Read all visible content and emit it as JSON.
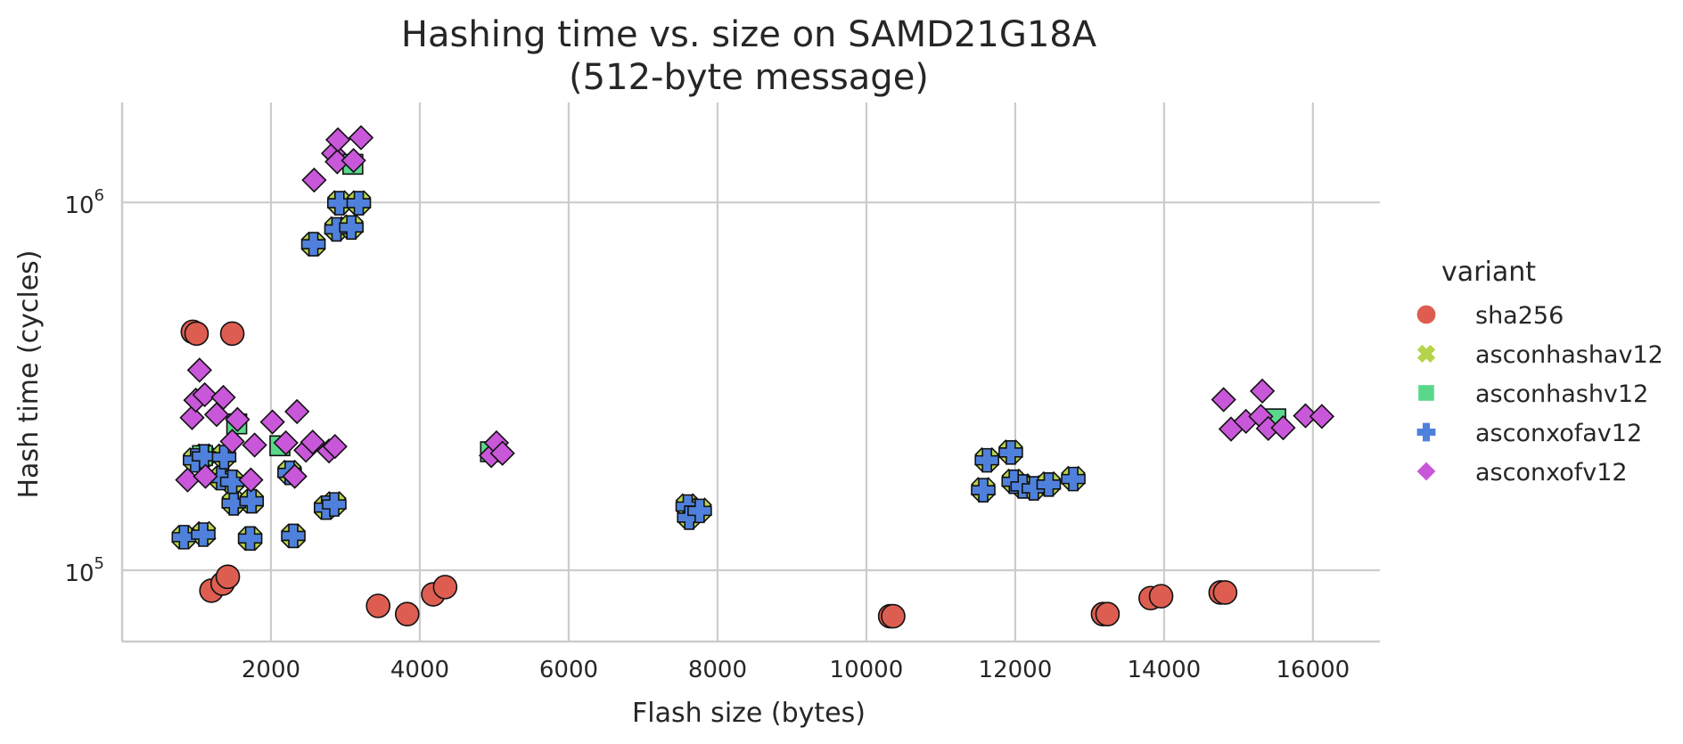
{
  "chart_data": {
    "type": "scatter",
    "title": "Hashing time vs. size on SAMD21G18A",
    "subtitle": "(512-byte message)",
    "xlabel": "Flash size (bytes)",
    "ylabel": "Hash time (cycles)",
    "x_scale": "linear",
    "y_scale": "log",
    "xlim": [
      0,
      16900
    ],
    "ylim": [
      64000,
      1870000
    ],
    "x_ticks": [
      2000,
      4000,
      6000,
      8000,
      10000,
      12000,
      14000,
      16000
    ],
    "x_tick_labels": [
      "2000",
      "4000",
      "6000",
      "8000",
      "10000",
      "12000",
      "14000",
      "16000"
    ],
    "y_ticks": [
      {
        "value": 100000,
        "base": "10",
        "exp": "5"
      },
      {
        "value": 1000000,
        "base": "10",
        "exp": "6"
      }
    ],
    "grid": true,
    "legend": {
      "title": "variant",
      "placement": "right"
    },
    "series": [
      {
        "name": "sha256",
        "marker": "circle",
        "color": "#dd5e51",
        "points": [
          [
            950,
            445000
          ],
          [
            1000,
            440000
          ],
          [
            1480,
            440000
          ],
          [
            1200,
            88000
          ],
          [
            1350,
            92000
          ],
          [
            1420,
            96000
          ],
          [
            3440,
            80000
          ],
          [
            3830,
            76000
          ],
          [
            4180,
            86000
          ],
          [
            4340,
            90000
          ],
          [
            10320,
            75000
          ],
          [
            10360,
            75000
          ],
          [
            13180,
            76000
          ],
          [
            13240,
            76000
          ],
          [
            13820,
            84000
          ],
          [
            13960,
            85000
          ],
          [
            14760,
            87000
          ],
          [
            14820,
            87000
          ]
        ]
      },
      {
        "name": "asconhashav12",
        "marker": "x",
        "color": "#b5d44c",
        "points": [
          [
            830,
            123000
          ],
          [
            1100,
            126000
          ],
          [
            1720,
            122000
          ],
          [
            2300,
            124000
          ],
          [
            1500,
            153000
          ],
          [
            1740,
            154000
          ],
          [
            1330,
            178000
          ],
          [
            1480,
            174000
          ],
          [
            2250,
            185000
          ],
          [
            980,
            200000
          ],
          [
            1100,
            205000
          ],
          [
            1370,
            205000
          ],
          [
            2740,
            148000
          ],
          [
            2850,
            152000
          ],
          [
            2570,
            770000
          ],
          [
            2880,
            850000
          ],
          [
            2920,
            1000000
          ],
          [
            3080,
            860000
          ],
          [
            3180,
            1000000
          ],
          [
            7600,
            150000
          ],
          [
            7620,
            140000
          ],
          [
            7760,
            146000
          ],
          [
            11570,
            166000
          ],
          [
            11620,
            200000
          ],
          [
            11940,
            210000
          ],
          [
            11980,
            175000
          ],
          [
            12100,
            170000
          ],
          [
            12250,
            168000
          ],
          [
            12450,
            172000
          ],
          [
            12780,
            178000
          ]
        ]
      },
      {
        "name": "asconhashv12",
        "marker": "square",
        "color": "#59d88b",
        "points": [
          [
            1080,
            205000
          ],
          [
            1540,
            250000
          ],
          [
            2120,
            218000
          ],
          [
            3100,
            1270000
          ],
          [
            4950,
            210000
          ],
          [
            15500,
            258000
          ]
        ]
      },
      {
        "name": "asconxofav12",
        "marker": "plus",
        "color": "#4f81dc",
        "points": [
          [
            830,
            123000
          ],
          [
            1090,
            125000
          ],
          [
            1720,
            122000
          ],
          [
            2300,
            124000
          ],
          [
            1500,
            152000
          ],
          [
            1740,
            154000
          ],
          [
            1330,
            178000
          ],
          [
            1480,
            174000
          ],
          [
            2250,
            184000
          ],
          [
            980,
            199000
          ],
          [
            1100,
            204000
          ],
          [
            1370,
            203000
          ],
          [
            2740,
            148000
          ],
          [
            2850,
            151000
          ],
          [
            2570,
            770000
          ],
          [
            2880,
            845000
          ],
          [
            2920,
            995000
          ],
          [
            3080,
            855000
          ],
          [
            3180,
            995000
          ],
          [
            7600,
            149000
          ],
          [
            7620,
            139000
          ],
          [
            7760,
            145000
          ],
          [
            11570,
            165000
          ],
          [
            11620,
            199000
          ],
          [
            11940,
            209000
          ],
          [
            11980,
            174000
          ],
          [
            12100,
            169000
          ],
          [
            12250,
            167000
          ],
          [
            12450,
            171000
          ],
          [
            12780,
            177000
          ]
        ]
      },
      {
        "name": "asconxofv12",
        "marker": "diamond",
        "color": "#c957d9",
        "points": [
          [
            880,
            176000
          ],
          [
            940,
            260000
          ],
          [
            990,
            290000
          ],
          [
            1040,
            350000
          ],
          [
            1110,
            300000
          ],
          [
            1120,
            180000
          ],
          [
            1270,
            265000
          ],
          [
            1360,
            295000
          ],
          [
            1480,
            224000
          ],
          [
            1550,
            257000
          ],
          [
            1730,
            176000
          ],
          [
            1780,
            219000
          ],
          [
            2020,
            253000
          ],
          [
            2200,
            222000
          ],
          [
            2350,
            270000
          ],
          [
            2320,
            180000
          ],
          [
            2470,
            212000
          ],
          [
            2560,
            223000
          ],
          [
            2780,
            211000
          ],
          [
            2860,
            217000
          ],
          [
            2580,
            1150000
          ],
          [
            2840,
            1360000
          ],
          [
            2890,
            1290000
          ],
          [
            2900,
            1480000
          ],
          [
            3110,
            1300000
          ],
          [
            3210,
            1500000
          ],
          [
            4960,
            205000
          ],
          [
            5030,
            222000
          ],
          [
            5110,
            208000
          ],
          [
            14800,
            291000
          ],
          [
            14900,
            242000
          ],
          [
            15100,
            254000
          ],
          [
            15300,
            262000
          ],
          [
            15320,
            307000
          ],
          [
            15400,
            243000
          ],
          [
            15600,
            244000
          ],
          [
            15900,
            263000
          ],
          [
            16120,
            262000
          ]
        ]
      }
    ]
  }
}
